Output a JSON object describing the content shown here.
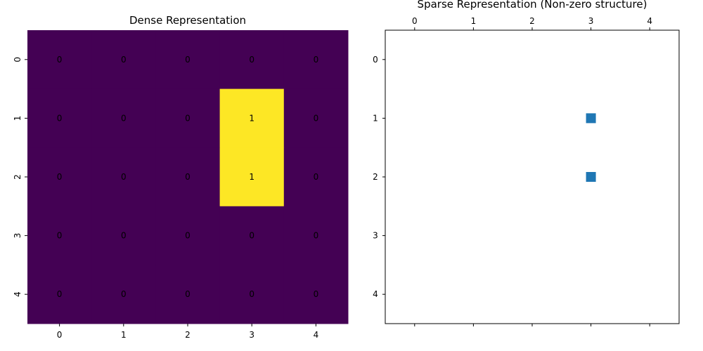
{
  "chart_data": [
    {
      "type": "heatmap",
      "title": "Dense Representation",
      "xlabel": "",
      "ylabel": "",
      "x_categories": [
        "0",
        "1",
        "2",
        "3",
        "4"
      ],
      "y_categories": [
        "0",
        "1",
        "2",
        "3",
        "4"
      ],
      "values": [
        [
          0,
          0,
          0,
          0,
          0
        ],
        [
          0,
          0,
          0,
          1,
          0
        ],
        [
          0,
          0,
          0,
          1,
          0
        ],
        [
          0,
          0,
          0,
          0,
          0
        ],
        [
          0,
          0,
          0,
          0,
          0
        ]
      ],
      "annotations": true,
      "colorbar": false,
      "colors": {
        "low": "#440154",
        "high": "#fde725",
        "text_on_low": "#ffffff",
        "text_on_high": "#000000"
      }
    },
    {
      "type": "scatter",
      "title": "Sparse Representation (Non-zero structure)",
      "xlabel": "",
      "ylabel": "",
      "x_ticks": [
        "0",
        "1",
        "2",
        "3",
        "4"
      ],
      "y_ticks": [
        "0",
        "1",
        "2",
        "3",
        "4"
      ],
      "xlim": [
        -0.5,
        4.5
      ],
      "ylim": [
        4.5,
        -0.5
      ],
      "x_tick_position": "top",
      "marker": "square",
      "points": [
        {
          "row": 1,
          "col": 3
        },
        {
          "row": 2,
          "col": 3
        }
      ],
      "colors": {
        "marker": "#1f77b4"
      }
    }
  ]
}
